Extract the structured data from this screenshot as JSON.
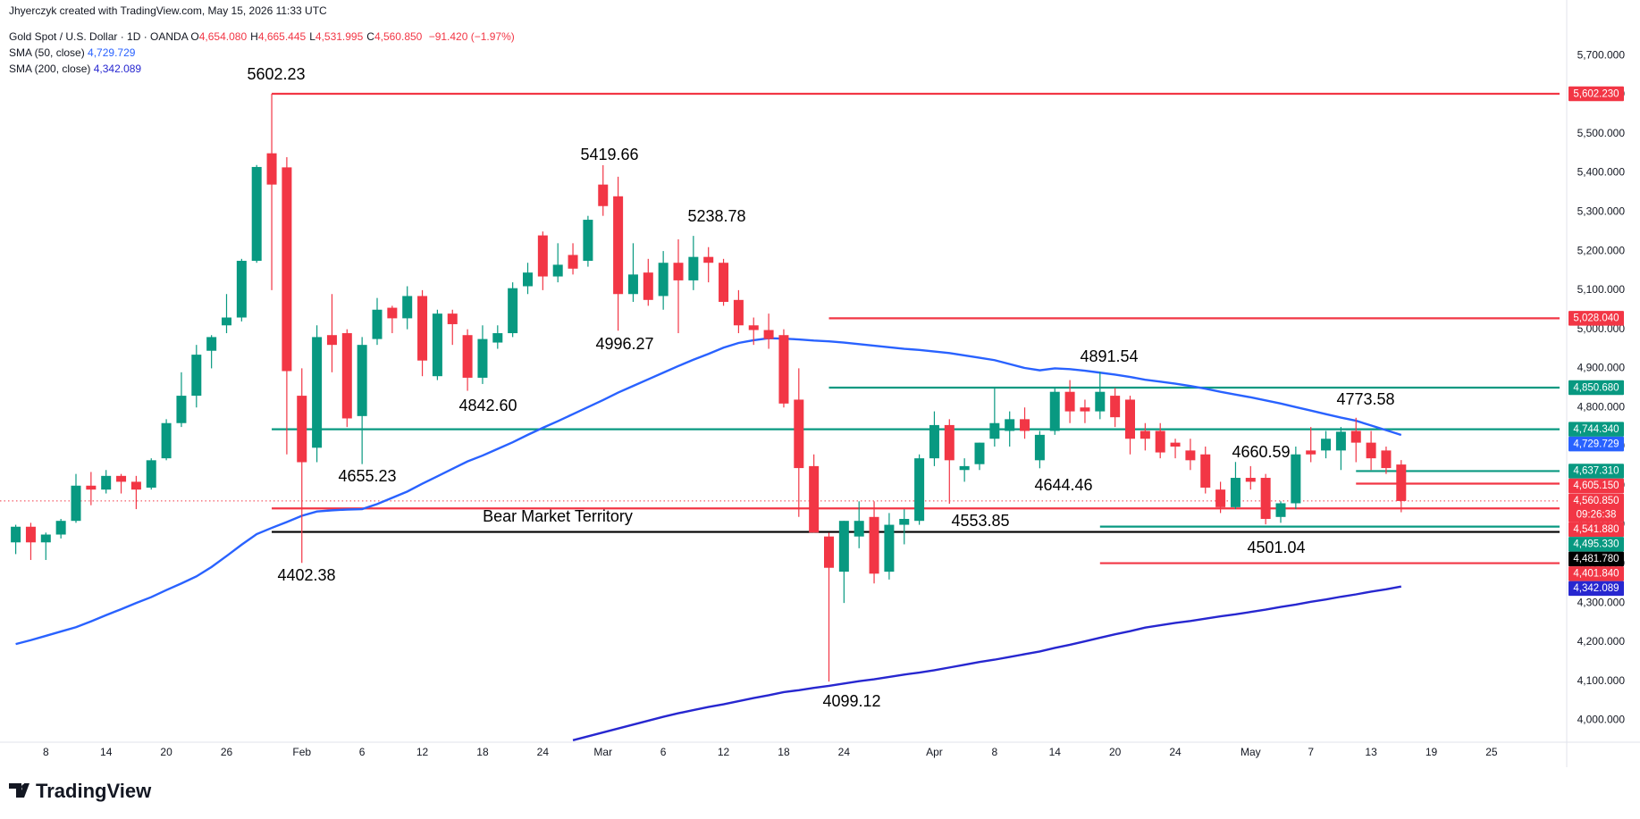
{
  "header": {
    "attribution": "Jhyerczyk created with TradingView.com, May 15, 2026 11:33 UTC",
    "ohlc": [
      {
        "key": "O",
        "value": "4,654.080"
      },
      {
        "key": "H",
        "value": "4,665.445"
      },
      {
        "key": "L",
        "value": "4,531.995"
      },
      {
        "key": "C",
        "value": "4,560.850"
      }
    ],
    "change": "−91.420 (−1.97%)"
  },
  "footer": {
    "logo": "TradingView"
  },
  "chart_data": {
    "type": "candlestick",
    "categories": [
      null,
      null,
      "8",
      null,
      null,
      null,
      "14",
      null,
      null,
      null,
      "20",
      null,
      null,
      null,
      "26",
      null,
      null,
      null,
      null,
      "Feb",
      null,
      null,
      null,
      "6",
      null,
      null,
      null,
      "12",
      null,
      null,
      null,
      "18",
      null,
      null,
      null,
      "24",
      null,
      null,
      null,
      "Mar",
      null,
      null,
      null,
      "6",
      null,
      null,
      null,
      "12",
      null,
      null,
      null,
      "18",
      null,
      null,
      null,
      "24",
      null,
      null,
      null,
      null,
      null,
      "Apr",
      null,
      null,
      null,
      "8",
      null,
      null,
      null,
      "14",
      null,
      null,
      null,
      "20",
      null,
      null,
      null,
      "24",
      null,
      null,
      null,
      null,
      "May",
      null,
      null,
      null,
      "7",
      null,
      null,
      null,
      "13",
      null,
      null,
      null,
      "19",
      null,
      null,
      null,
      "25",
      null,
      null,
      null,
      null
    ],
    "series": [
      {
        "name": "Gold Spot / U.S. Dollar · 1D · OANDA",
        "type": "candlestick",
        "up_color": "#089981",
        "down_color": "#f23645",
        "open": [
          4455,
          4495,
          4455,
          4475,
          4510,
          4600,
          4590,
          4625,
          4610,
          4595,
          4670,
          4760,
          4830,
          4945,
          5010,
          5030,
          5175,
          5450,
          5414,
          4830,
          4697,
          4985,
          4990,
          4778,
          4975,
          5055,
          5028,
          5085,
          4880,
          5040,
          4985,
          4876,
          4966,
          4990,
          5110,
          5240,
          5135,
          5190,
          5175,
          5370,
          5340,
          5090,
          5145,
          5085,
          5170,
          5125,
          5185,
          5170,
          5075,
          5010,
          4998,
          4985,
          4820,
          4650,
          4470,
          4380,
          4470,
          4520,
          4380,
          4500,
          4510,
          4670,
          4755,
          4640,
          4655,
          4720,
          4740,
          4770,
          4665,
          4740,
          4840,
          4800,
          4790,
          4830,
          4820,
          4740,
          4740,
          4710,
          4690,
          4680,
          4590,
          4545,
          4620,
          4620,
          4520,
          4555,
          4690,
          4690,
          4690,
          4740,
          4710,
          4690,
          4654.08,
          null,
          null,
          null,
          null,
          null,
          null,
          null,
          null,
          null,
          null
        ],
        "high": [
          4500,
          4505,
          4480,
          4515,
          4630,
          4635,
          4640,
          4630,
          4625,
          4670,
          4770,
          4890,
          4960,
          4985,
          5090,
          5180,
          5420,
          5602.23,
          5440,
          4900,
          5010,
          5090,
          5000,
          4980,
          5080,
          5060,
          5110,
          5100,
          5050,
          5050,
          5000,
          5010,
          5010,
          5120,
          5170,
          5250,
          5220,
          5220,
          5290,
          5419.66,
          5390,
          5220,
          5180,
          5200,
          5230,
          5238.78,
          5210,
          5180,
          5100,
          5030,
          5040,
          5000,
          4900,
          4680,
          4480,
          4510,
          4560,
          4560,
          4530,
          4540,
          4680,
          4790,
          4770,
          4670,
          4710,
          4850,
          4790,
          4800,
          4740,
          4850,
          4870,
          4820,
          4891.54,
          4850,
          4830,
          4760,
          4760,
          4720,
          4720,
          4700,
          4610,
          4660.59,
          4650,
          4630,
          4560,
          4700,
          4750,
          4740,
          4750,
          4773.58,
          4740,
          4700,
          4665.445,
          null,
          null,
          null,
          null,
          null,
          null,
          null,
          null,
          null,
          null
        ],
        "low": [
          4425,
          4410,
          4410,
          4465,
          4505,
          4550,
          4580,
          4580,
          4540,
          4590,
          4665,
          4750,
          4800,
          4900,
          4990,
          5020,
          5170,
          5100,
          4680,
          4402.38,
          4660,
          4890,
          4750,
          4655.23,
          4960,
          4990,
          5000,
          4880,
          4870,
          4960,
          4842.6,
          4860,
          4950,
          4980,
          5090,
          5100,
          5120,
          5140,
          5160,
          5290,
          4996.27,
          5070,
          5060,
          5050,
          4990,
          5100,
          5120,
          5060,
          4990,
          4960,
          4950,
          4800,
          4520,
          4480,
          4099.12,
          4300,
          4440,
          4350,
          4360,
          4450,
          4500,
          4650,
          4553.85,
          4610,
          4640,
          4700,
          4700,
          4720,
          4644.46,
          4730,
          4760,
          4760,
          4770,
          4750,
          4680,
          4690,
          4670,
          4670,
          4640,
          4580,
          4530,
          4540,
          4590,
          4501.04,
          4505,
          4540,
          4660,
          4670,
          4640,
          4660,
          4640,
          4630,
          4531.995,
          null,
          null,
          null,
          null,
          null,
          null,
          null,
          null,
          null,
          null
        ],
        "close": [
          4495,
          4455,
          4475,
          4510,
          4600,
          4590,
          4625,
          4610,
          4590,
          4665,
          4760,
          4830,
          4935,
          4980,
          5030,
          5175,
          5415,
          5370,
          4893,
          4660,
          4980,
          4960,
          4772,
          4960,
          5050,
          5028,
          5085,
          4920,
          5040,
          5013,
          4876,
          4975,
          4990,
          5105,
          5145,
          5135,
          5165,
          5155,
          5280,
          5315,
          5090,
          5140,
          5075,
          5170,
          5125,
          5185,
          5170,
          5070,
          5010,
          4998,
          4975,
          4810,
          4645,
          4480,
          4390,
          4510,
          4510,
          4375,
          4500,
          4515,
          4670,
          4755,
          4665,
          4650,
          4710,
          4760,
          4770,
          4740,
          4730,
          4840,
          4790,
          4790,
          4840,
          4775,
          4720,
          4720,
          4685,
          4700,
          4665,
          4595,
          4545,
          4620,
          4610,
          4515,
          4555,
          4680,
          4680,
          4720,
          4738,
          4710,
          4670,
          4645,
          4560.85,
          null,
          null,
          null,
          null,
          null,
          null,
          null,
          null,
          null,
          null
        ]
      },
      {
        "name": "SMA (50, close)",
        "type": "line",
        "color": "#2962ff",
        "tag_label": "4,729.729",
        "values": [
          4195,
          4205,
          4216,
          4227,
          4238,
          4253,
          4269,
          4284,
          4300,
          4315,
          4333,
          4350,
          4368,
          4392,
          4420,
          4449,
          4476,
          4492,
          4507,
          4523,
          4534,
          4537,
          4539,
          4540,
          4553,
          4569,
          4585,
          4605,
          4624,
          4643,
          4662,
          4677,
          4694,
          4711,
          4730,
          4748,
          4765,
          4783,
          4801,
          4819,
          4838,
          4855,
          4872,
          4889,
          4906,
          4922,
          4937,
          4953,
          4965,
          4972,
          4977,
          4976,
          4974,
          4971,
          4969,
          4966,
          4962,
          4958,
          4954,
          4950,
          4947,
          4943,
          4939,
          4933,
          4927,
          4921,
          4911,
          4901,
          4895,
          4900,
          4898,
          4894,
          4889,
          4884,
          4878,
          4871,
          4866,
          4861,
          4855,
          4848,
          4840,
          4833,
          4826,
          4818,
          4810,
          4801,
          4792,
          4783,
          4774,
          4766,
          4754,
          4742,
          4729.729,
          null,
          null,
          null,
          null,
          null,
          null,
          null,
          null,
          null,
          null
        ]
      },
      {
        "name": "SMA (200, close)",
        "type": "line",
        "color": "#2727d0",
        "tag_label": "4,342.089",
        "values": [
          null,
          null,
          null,
          null,
          null,
          null,
          null,
          null,
          null,
          null,
          null,
          null,
          null,
          null,
          null,
          null,
          null,
          null,
          null,
          null,
          null,
          null,
          null,
          null,
          null,
          null,
          null,
          null,
          null,
          null,
          null,
          null,
          null,
          null,
          null,
          null,
          null,
          3949,
          3959,
          3969,
          3979,
          3989,
          3999,
          4009,
          4018,
          4026,
          4034,
          4041,
          4049,
          4057,
          4064,
          4072,
          4077,
          4083,
          4088,
          4094,
          4100,
          4105,
          4111,
          4117,
          4122,
          4128,
          4135,
          4142,
          4149,
          4155,
          4162,
          4169,
          4176,
          4185,
          4193,
          4202,
          4211,
          4220,
          4228,
          4237,
          4243,
          4249,
          4254,
          4260,
          4266,
          4271,
          4277,
          4283,
          4290,
          4296,
          4303,
          4309,
          4316,
          4322,
          4329,
          4335,
          4342.089,
          null,
          null,
          null,
          null,
          null,
          null,
          null,
          null,
          null,
          null
        ]
      }
    ],
    "ylim": [
      3944,
      5842
    ],
    "yticks": [
      {
        "value": 4000,
        "label": "4,000.000"
      },
      {
        "value": 4100,
        "label": "4,100.000"
      },
      {
        "value": 4200,
        "label": "4,200.000"
      },
      {
        "value": 4300,
        "label": "4,300.000"
      },
      {
        "value": 4400,
        "label": "4,400.000"
      },
      {
        "value": 4500,
        "label": "4,500.000"
      },
      {
        "value": 4600,
        "label": "4,600.000"
      },
      {
        "value": 4700,
        "label": "4,700.000"
      },
      {
        "value": 4800,
        "label": "4,800.000"
      },
      {
        "value": 4900,
        "label": "4,900.000"
      },
      {
        "value": 5000,
        "label": "5,000.000"
      },
      {
        "value": 5100,
        "label": "5,100.000"
      },
      {
        "value": 5200,
        "label": "5,200.000"
      },
      {
        "value": 5300,
        "label": "5,300.000"
      },
      {
        "value": 5400,
        "label": "5,400.000"
      },
      {
        "value": 5500,
        "label": "5,500.000"
      },
      {
        "value": 5600,
        "label": "5,600.000"
      },
      {
        "value": 5700,
        "label": "5,700.000"
      }
    ],
    "levels": [
      {
        "value": 5602.23,
        "label": "5,602.230",
        "color": "#f23645"
      },
      {
        "value": 5028.04,
        "label": "5,028.040",
        "color": "#f23645"
      },
      {
        "value": 4850.68,
        "label": "4,850.680",
        "color": "#089981"
      },
      {
        "value": 4744.34,
        "label": "4,744.340",
        "color": "#089981"
      },
      {
        "value": 4637.31,
        "label": "4,637.310",
        "color": "#089981"
      },
      {
        "value": 4605.15,
        "label": "4,605.150",
        "color": "#f23645"
      },
      {
        "value": 4560.85,
        "label": "4,560.850",
        "color": "#f23645",
        "style": "dotted",
        "countdown": "09:26:38"
      },
      {
        "value": 4541.88,
        "label": "4,541.880",
        "color": "#f23645"
      },
      {
        "value": 4495.33,
        "label": "4,495.330",
        "color": "#089981"
      },
      {
        "value": 4481.78,
        "label": "4,481.780",
        "color": "#000000"
      },
      {
        "value": 4401.84,
        "label": "4,401.840",
        "color": "#f23645"
      }
    ],
    "annotations": [
      "5602.23",
      "5419.66",
      "5238.78",
      "4996.27",
      "4842.60",
      "4655.23",
      "4402.38",
      "4099.12",
      "4553.85",
      "4644.46",
      "4891.54",
      "4660.59",
      "4773.58",
      "4501.04",
      "Bear Market Territory"
    ]
  }
}
